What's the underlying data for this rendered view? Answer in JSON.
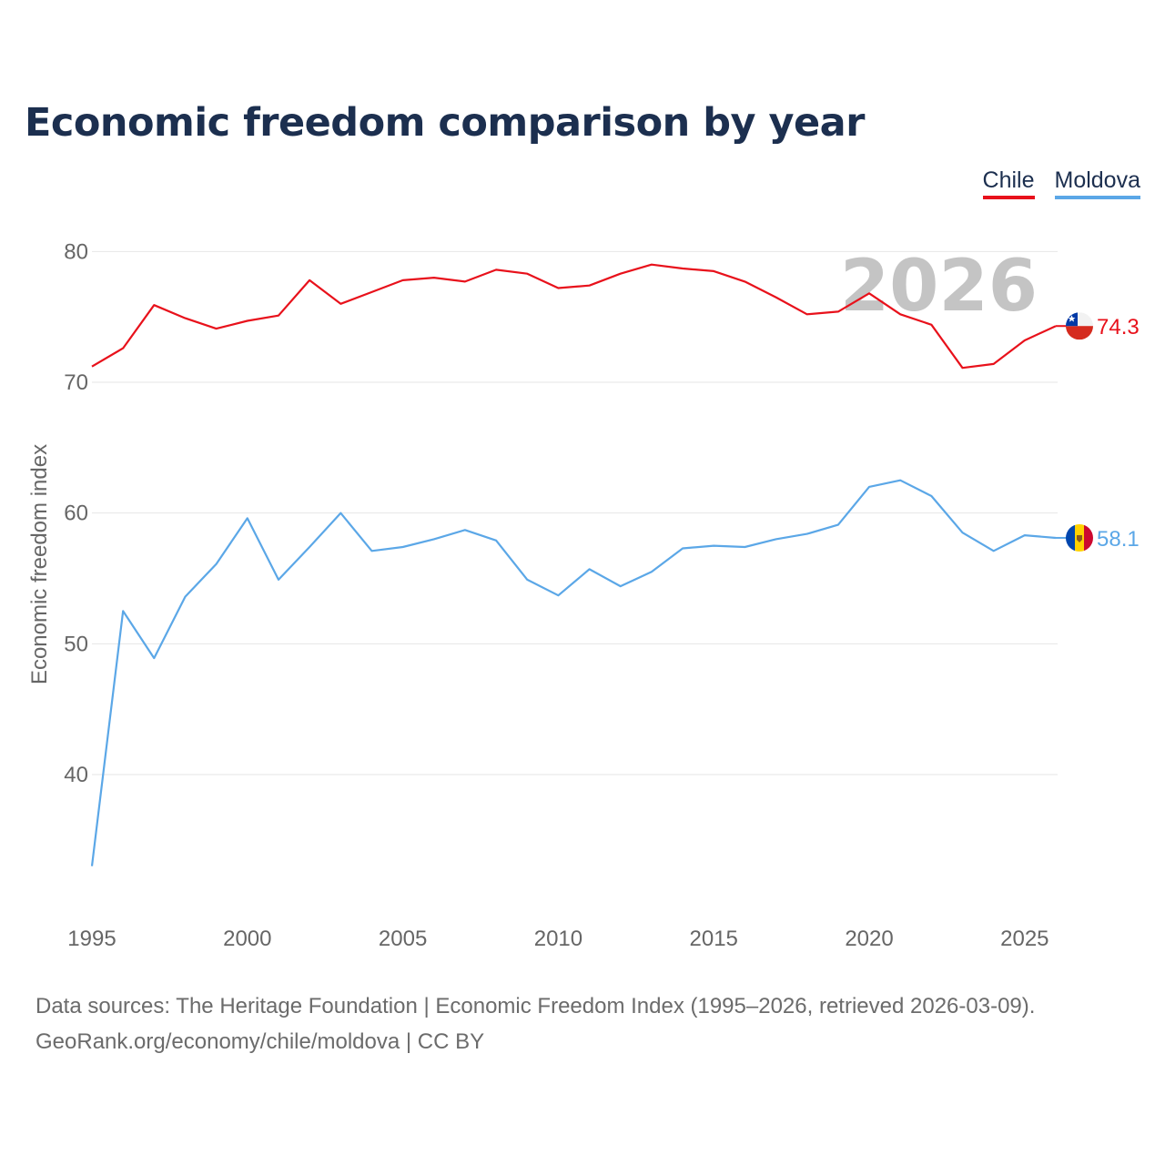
{
  "title": "Economic freedom comparison by year",
  "legend": [
    {
      "label": "Chile",
      "color": "#e8111b"
    },
    {
      "label": "Moldova",
      "color": "#5ba7e7"
    }
  ],
  "year_watermark": "2026",
  "footer": {
    "line1": "Data sources: The Heritage Foundation | Economic Freedom Index (1995–2026, retrieved 2026-03-09).",
    "line2": "GeoRank.org/economy/chile/moldova | CC BY"
  },
  "end_labels": {
    "chile": "74.3",
    "moldova": "58.1"
  },
  "chart_data": {
    "type": "line",
    "title": "Economic freedom comparison by year",
    "xlabel": "",
    "ylabel": "Economic freedom index",
    "x": [
      1995,
      1996,
      1997,
      1998,
      1999,
      2000,
      2001,
      2002,
      2003,
      2004,
      2005,
      2006,
      2007,
      2008,
      2009,
      2010,
      2011,
      2012,
      2013,
      2014,
      2015,
      2016,
      2017,
      2018,
      2019,
      2020,
      2021,
      2022,
      2023,
      2024,
      2025,
      2026
    ],
    "xlim": [
      1995,
      2026
    ],
    "ylim": [
      32,
      84
    ],
    "xticks": [
      1995,
      2000,
      2005,
      2010,
      2015,
      2020,
      2025
    ],
    "yticks": [
      40,
      50,
      60,
      70,
      80
    ],
    "grid": true,
    "legend_position": "top-right",
    "series": [
      {
        "name": "Chile",
        "color": "#e8111b",
        "values": [
          71.2,
          72.6,
          75.9,
          74.9,
          74.1,
          74.7,
          75.1,
          77.8,
          76.0,
          76.9,
          77.8,
          78.0,
          77.7,
          78.6,
          78.3,
          77.2,
          77.4,
          78.3,
          79.0,
          78.7,
          78.5,
          77.7,
          76.5,
          75.2,
          75.4,
          76.8,
          75.2,
          74.4,
          71.1,
          71.4,
          73.2,
          74.3
        ]
      },
      {
        "name": "Moldova",
        "color": "#5ba7e7",
        "values": [
          33.0,
          52.5,
          48.9,
          53.6,
          56.1,
          59.6,
          54.9,
          57.4,
          60.0,
          57.1,
          57.4,
          58.0,
          58.7,
          57.9,
          54.9,
          53.7,
          55.7,
          54.4,
          55.5,
          57.3,
          57.5,
          57.4,
          58.0,
          58.4,
          59.1,
          62.0,
          62.5,
          61.3,
          58.5,
          57.1,
          58.3,
          58.1
        ]
      }
    ]
  }
}
